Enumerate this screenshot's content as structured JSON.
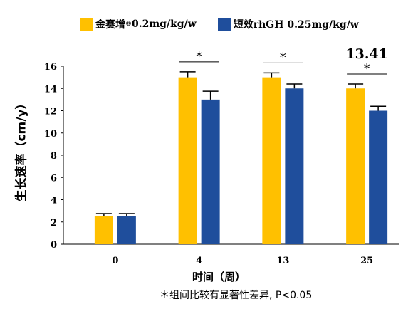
{
  "chart_data": {
    "type": "bar",
    "categories": [
      "0",
      "4",
      "13",
      "25"
    ],
    "series": [
      {
        "name": "金赛增",
        "name_sup": "®",
        "name_suffix": " 0.2mg/kg/w",
        "color": "#FFC000",
        "values": [
          2.5,
          15.0,
          15.0,
          14.0
        ],
        "errors": [
          0.25,
          0.5,
          0.4,
          0.4
        ]
      },
      {
        "name": "短效rhGH  0.25mg/kg/w",
        "color": "#1F4E9C",
        "values": [
          2.5,
          13.0,
          14.0,
          12.0
        ],
        "errors": [
          0.25,
          0.75,
          0.4,
          0.4
        ]
      }
    ],
    "ylim": [
      0,
      16
    ],
    "yticks": [
      0,
      2,
      4,
      6,
      8,
      10,
      12,
      14,
      16
    ],
    "ylabel": "生长速率（cm/y）",
    "xlabel": "时间（周）",
    "significance": [
      {
        "category_index": 1,
        "symbol": "*"
      },
      {
        "category_index": 2,
        "symbol": "*"
      },
      {
        "category_index": 3,
        "symbol": "*",
        "value_label": "13.41"
      }
    ],
    "note": "＊组间比较有显著性差异, P<0.05",
    "grid": false,
    "legend": "top"
  }
}
